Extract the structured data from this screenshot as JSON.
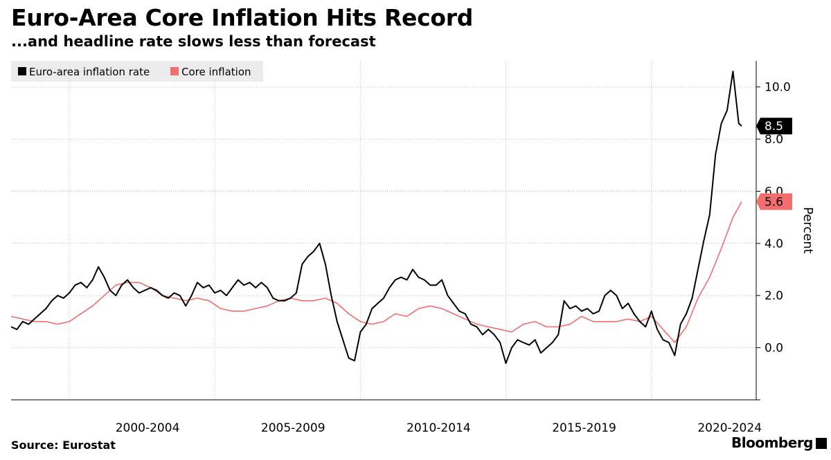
{
  "header": {
    "title": "Euro-Area Core Inflation Hits Record",
    "subtitle": "...and headline rate slows less than forecast"
  },
  "footer": {
    "source": "Source: Eurostat",
    "brand": "Bloomberg"
  },
  "colors": {
    "headline": "#000000",
    "core": "#f26d6d",
    "grid": "#bdbdbd"
  },
  "chart_data": {
    "type": "line",
    "title": "Euro-Area Core Inflation Hits Record",
    "subtitle": "...and headline rate slows less than forecast",
    "ylabel": "Percent",
    "xlabel": "",
    "xlim": [
      1998.0,
      2023.6
    ],
    "ylim": [
      -2.0,
      11.0
    ],
    "y_ticks": [
      0,
      2,
      4,
      6,
      8,
      10
    ],
    "y_tick_labels": [
      "0.0",
      "2.0",
      "4.0",
      "6.0",
      "8.0",
      "10.0"
    ],
    "x_ticks": [
      2000,
      2005,
      2010,
      2015,
      2020
    ],
    "x_tick_labels": [
      "2000-2004",
      "2005-2009",
      "2010-2014",
      "2015-2019",
      "2020-2024"
    ],
    "legend_position": "top-left",
    "series": [
      {
        "name": "Euro-area inflation rate",
        "color": "#000000",
        "last_value_label": "8.5",
        "points": [
          [
            1998.0,
            0.8
          ],
          [
            1998.2,
            0.7
          ],
          [
            1998.4,
            1.0
          ],
          [
            1998.6,
            0.9
          ],
          [
            1998.8,
            1.1
          ],
          [
            1999.0,
            1.3
          ],
          [
            1999.2,
            1.5
          ],
          [
            1999.4,
            1.8
          ],
          [
            1999.6,
            2.0
          ],
          [
            1999.8,
            1.9
          ],
          [
            2000.0,
            2.1
          ],
          [
            2000.2,
            2.4
          ],
          [
            2000.4,
            2.5
          ],
          [
            2000.6,
            2.3
          ],
          [
            2000.8,
            2.6
          ],
          [
            2001.0,
            3.1
          ],
          [
            2001.2,
            2.7
          ],
          [
            2001.4,
            2.2
          ],
          [
            2001.6,
            2.0
          ],
          [
            2001.8,
            2.4
          ],
          [
            2002.0,
            2.6
          ],
          [
            2002.2,
            2.3
          ],
          [
            2002.4,
            2.1
          ],
          [
            2002.6,
            2.2
          ],
          [
            2002.8,
            2.3
          ],
          [
            2003.0,
            2.2
          ],
          [
            2003.2,
            2.0
          ],
          [
            2003.4,
            1.9
          ],
          [
            2003.6,
            2.1
          ],
          [
            2003.8,
            2.0
          ],
          [
            2004.0,
            1.6
          ],
          [
            2004.2,
            2.0
          ],
          [
            2004.4,
            2.5
          ],
          [
            2004.6,
            2.3
          ],
          [
            2004.8,
            2.4
          ],
          [
            2005.0,
            2.1
          ],
          [
            2005.2,
            2.2
          ],
          [
            2005.4,
            2.0
          ],
          [
            2005.6,
            2.3
          ],
          [
            2005.8,
            2.6
          ],
          [
            2006.0,
            2.4
          ],
          [
            2006.2,
            2.5
          ],
          [
            2006.4,
            2.3
          ],
          [
            2006.6,
            2.5
          ],
          [
            2006.8,
            2.3
          ],
          [
            2007.0,
            1.9
          ],
          [
            2007.2,
            1.8
          ],
          [
            2007.4,
            1.8
          ],
          [
            2007.6,
            1.9
          ],
          [
            2007.8,
            2.1
          ],
          [
            2008.0,
            3.2
          ],
          [
            2008.2,
            3.5
          ],
          [
            2008.4,
            3.7
          ],
          [
            2008.6,
            4.0
          ],
          [
            2008.8,
            3.2
          ],
          [
            2009.0,
            2.0
          ],
          [
            2009.2,
            1.0
          ],
          [
            2009.4,
            0.3
          ],
          [
            2009.6,
            -0.4
          ],
          [
            2009.8,
            -0.5
          ],
          [
            2010.0,
            0.6
          ],
          [
            2010.2,
            0.9
          ],
          [
            2010.4,
            1.5
          ],
          [
            2010.6,
            1.7
          ],
          [
            2010.8,
            1.9
          ],
          [
            2011.0,
            2.3
          ],
          [
            2011.2,
            2.6
          ],
          [
            2011.4,
            2.7
          ],
          [
            2011.6,
            2.6
          ],
          [
            2011.8,
            3.0
          ],
          [
            2012.0,
            2.7
          ],
          [
            2012.2,
            2.6
          ],
          [
            2012.4,
            2.4
          ],
          [
            2012.6,
            2.4
          ],
          [
            2012.8,
            2.6
          ],
          [
            2013.0,
            2.0
          ],
          [
            2013.2,
            1.7
          ],
          [
            2013.4,
            1.4
          ],
          [
            2013.6,
            1.3
          ],
          [
            2013.8,
            0.9
          ],
          [
            2014.0,
            0.8
          ],
          [
            2014.2,
            0.5
          ],
          [
            2014.4,
            0.7
          ],
          [
            2014.6,
            0.5
          ],
          [
            2014.8,
            0.2
          ],
          [
            2015.0,
            -0.6
          ],
          [
            2015.2,
            0.0
          ],
          [
            2015.4,
            0.3
          ],
          [
            2015.6,
            0.2
          ],
          [
            2015.8,
            0.1
          ],
          [
            2016.0,
            0.3
          ],
          [
            2016.2,
            -0.2
          ],
          [
            2016.4,
            0.0
          ],
          [
            2016.6,
            0.2
          ],
          [
            2016.8,
            0.5
          ],
          [
            2017.0,
            1.8
          ],
          [
            2017.2,
            1.5
          ],
          [
            2017.4,
            1.6
          ],
          [
            2017.6,
            1.4
          ],
          [
            2017.8,
            1.5
          ],
          [
            2018.0,
            1.3
          ],
          [
            2018.2,
            1.4
          ],
          [
            2018.4,
            2.0
          ],
          [
            2018.6,
            2.2
          ],
          [
            2018.8,
            2.0
          ],
          [
            2019.0,
            1.5
          ],
          [
            2019.2,
            1.7
          ],
          [
            2019.4,
            1.3
          ],
          [
            2019.6,
            1.0
          ],
          [
            2019.8,
            0.8
          ],
          [
            2020.0,
            1.4
          ],
          [
            2020.2,
            0.7
          ],
          [
            2020.4,
            0.3
          ],
          [
            2020.6,
            0.2
          ],
          [
            2020.8,
            -0.3
          ],
          [
            2021.0,
            0.9
          ],
          [
            2021.2,
            1.3
          ],
          [
            2021.4,
            1.9
          ],
          [
            2021.6,
            3.0
          ],
          [
            2021.8,
            4.1
          ],
          [
            2022.0,
            5.1
          ],
          [
            2022.2,
            7.4
          ],
          [
            2022.4,
            8.6
          ],
          [
            2022.6,
            9.1
          ],
          [
            2022.8,
            10.6
          ],
          [
            2023.0,
            8.6
          ],
          [
            2023.1,
            8.5
          ]
        ]
      },
      {
        "name": "Core inflation",
        "color": "#f26d6d",
        "last_value_label": "5.6",
        "points": [
          [
            1998.0,
            1.2
          ],
          [
            1998.4,
            1.1
          ],
          [
            1998.8,
            1.0
          ],
          [
            1999.2,
            1.0
          ],
          [
            1999.6,
            0.9
          ],
          [
            2000.0,
            1.0
          ],
          [
            2000.4,
            1.3
          ],
          [
            2000.8,
            1.6
          ],
          [
            2001.2,
            2.0
          ],
          [
            2001.6,
            2.4
          ],
          [
            2002.0,
            2.5
          ],
          [
            2002.4,
            2.5
          ],
          [
            2002.8,
            2.3
          ],
          [
            2003.2,
            2.0
          ],
          [
            2003.6,
            1.9
          ],
          [
            2004.0,
            1.8
          ],
          [
            2004.4,
            1.9
          ],
          [
            2004.8,
            1.8
          ],
          [
            2005.2,
            1.5
          ],
          [
            2005.6,
            1.4
          ],
          [
            2006.0,
            1.4
          ],
          [
            2006.4,
            1.5
          ],
          [
            2006.8,
            1.6
          ],
          [
            2007.2,
            1.8
          ],
          [
            2007.6,
            1.9
          ],
          [
            2008.0,
            1.8
          ],
          [
            2008.4,
            1.8
          ],
          [
            2008.8,
            1.9
          ],
          [
            2009.2,
            1.7
          ],
          [
            2009.6,
            1.3
          ],
          [
            2010.0,
            1.0
          ],
          [
            2010.4,
            0.9
          ],
          [
            2010.8,
            1.0
          ],
          [
            2011.2,
            1.3
          ],
          [
            2011.6,
            1.2
          ],
          [
            2012.0,
            1.5
          ],
          [
            2012.4,
            1.6
          ],
          [
            2012.8,
            1.5
          ],
          [
            2013.2,
            1.3
          ],
          [
            2013.6,
            1.1
          ],
          [
            2014.0,
            0.9
          ],
          [
            2014.4,
            0.8
          ],
          [
            2014.8,
            0.7
          ],
          [
            2015.2,
            0.6
          ],
          [
            2015.6,
            0.9
          ],
          [
            2016.0,
            1.0
          ],
          [
            2016.4,
            0.8
          ],
          [
            2016.8,
            0.8
          ],
          [
            2017.2,
            0.9
          ],
          [
            2017.6,
            1.2
          ],
          [
            2018.0,
            1.0
          ],
          [
            2018.4,
            1.0
          ],
          [
            2018.8,
            1.0
          ],
          [
            2019.2,
            1.1
          ],
          [
            2019.6,
            1.0
          ],
          [
            2020.0,
            1.2
          ],
          [
            2020.4,
            0.7
          ],
          [
            2020.8,
            0.2
          ],
          [
            2021.2,
            0.8
          ],
          [
            2021.6,
            1.9
          ],
          [
            2022.0,
            2.7
          ],
          [
            2022.4,
            3.8
          ],
          [
            2022.8,
            5.0
          ],
          [
            2023.1,
            5.6
          ]
        ]
      }
    ]
  }
}
